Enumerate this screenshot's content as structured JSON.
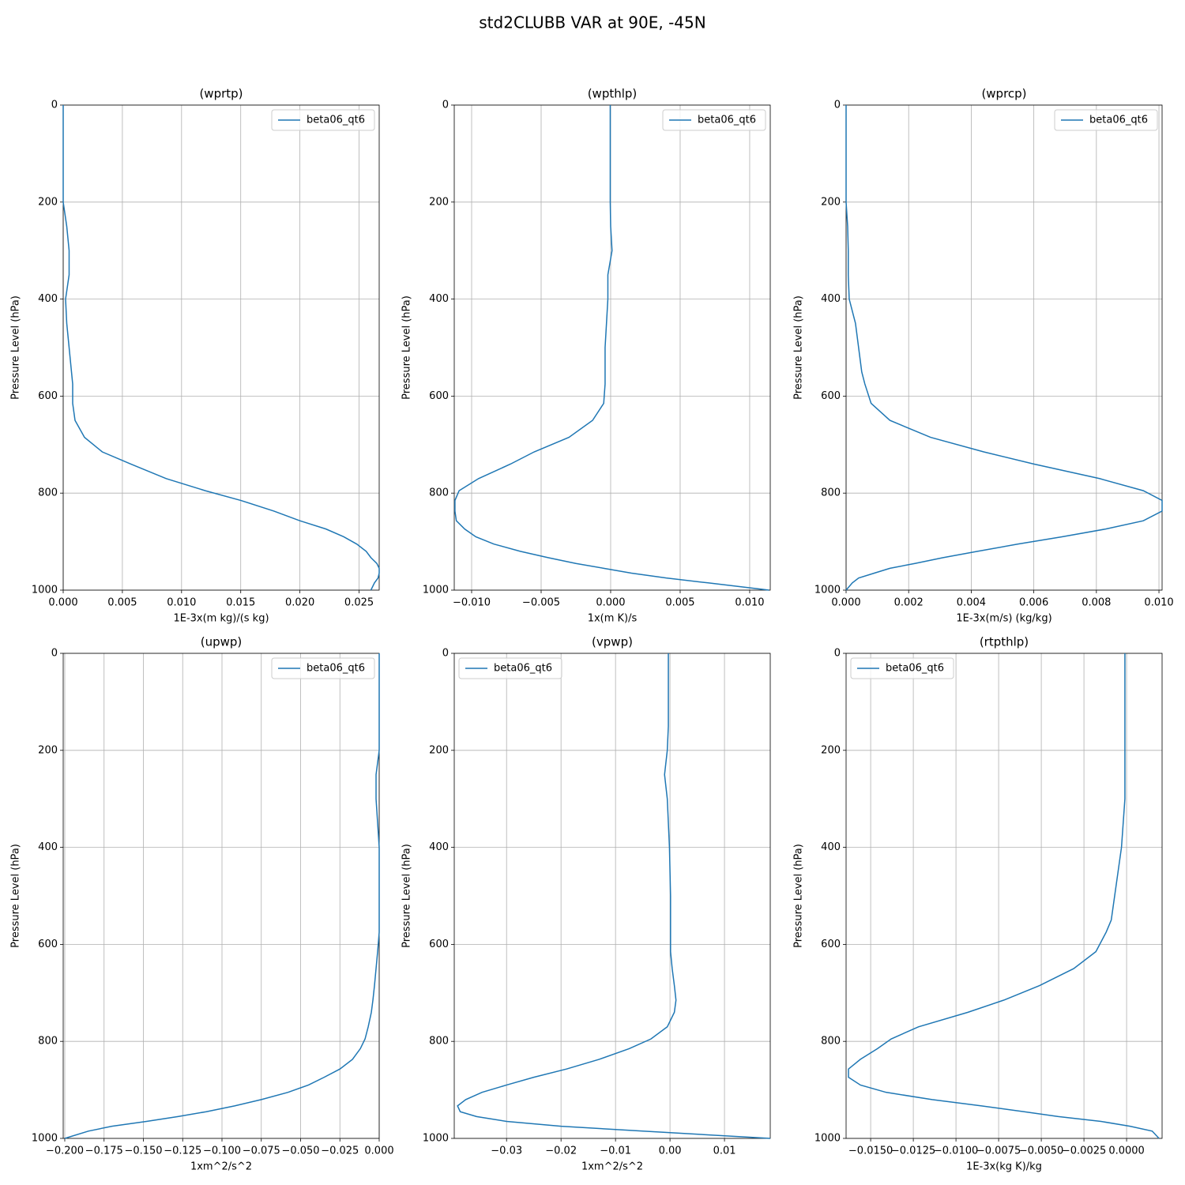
{
  "title": "std2CLUBB VAR at 90E, -45N",
  "chart_data": [
    {
      "type": "line",
      "title": "(wprtp)",
      "xlabel": "1E-3x(m kg)/(s kg)",
      "ylabel": "Pressure Level (hPa)",
      "y": [
        0,
        50,
        100,
        150,
        200,
        250,
        300,
        350,
        400,
        450,
        500,
        550,
        575,
        615,
        650,
        685,
        715,
        740,
        770,
        795,
        815,
        837,
        857,
        874,
        890,
        905,
        920,
        933,
        945,
        955,
        965,
        975,
        985,
        1000
      ],
      "series": [
        {
          "name": "beta06_qt6",
          "color": "#1f77b4",
          "values": [
            0,
            0,
            0,
            0,
            0,
            0.0003,
            0.0005,
            0.0005,
            0.0002,
            0.0003,
            0.0005,
            0.0007,
            0.0008,
            0.0008,
            0.001,
            0.0018,
            0.0033,
            0.0057,
            0.0087,
            0.012,
            0.015,
            0.0178,
            0.02,
            0.0222,
            0.0237,
            0.0248,
            0.0256,
            0.026,
            0.0265,
            0.0267,
            0.0267,
            0.0266,
            0.0263,
            0.026
          ]
        }
      ],
      "xlim": [
        0,
        0.0267
      ],
      "ylim": [
        1000,
        0
      ],
      "xticks": [
        {
          "value": 0,
          "label": "0.000"
        },
        {
          "value": 0.005,
          "label": "0.005"
        },
        {
          "value": 0.01,
          "label": "0.010"
        },
        {
          "value": 0.015,
          "label": "0.015"
        },
        {
          "value": 0.02,
          "label": "0.020"
        },
        {
          "value": 0.025,
          "label": "0.025"
        }
      ],
      "yticks": [
        0,
        200,
        400,
        600,
        800,
        1000
      ],
      "grid": true,
      "legend": "upper right"
    },
    {
      "type": "line",
      "title": "(wpthlp)",
      "xlabel": "1x(m K)/s",
      "ylabel": "Pressure Level (hPa)",
      "y": [
        0,
        50,
        100,
        150,
        200,
        250,
        300,
        350,
        400,
        450,
        500,
        550,
        575,
        615,
        650,
        685,
        715,
        740,
        770,
        795,
        815,
        837,
        857,
        874,
        890,
        905,
        920,
        933,
        945,
        955,
        965,
        975,
        985,
        1000
      ],
      "series": [
        {
          "name": "beta06_qt6",
          "color": "#1f77b4",
          "values": [
            -3e-05,
            -3e-05,
            -3e-05,
            -3e-05,
            -3e-05,
            0,
            0.0001,
            -0.0002,
            -0.0002,
            -0.0003,
            -0.0004,
            -0.0004,
            -0.0004,
            -0.0005,
            -0.0013,
            -0.003,
            -0.0055,
            -0.0072,
            -0.0095,
            -0.0109,
            -0.0112,
            -0.0112,
            -0.0111,
            -0.0105,
            -0.0097,
            -0.0084,
            -0.0065,
            -0.0045,
            -0.0025,
            -0.0005,
            0.0015,
            0.004,
            0.007,
            0.0114
          ]
        }
      ],
      "xlim": [
        -0.01125,
        0.01148
      ],
      "ylim": [
        1000,
        0
      ],
      "xticks": [
        {
          "value": -0.01,
          "label": "−0.010"
        },
        {
          "value": -0.005,
          "label": "−0.005"
        },
        {
          "value": 0,
          "label": "0.000"
        },
        {
          "value": 0.005,
          "label": "0.005"
        },
        {
          "value": 0.01,
          "label": "0.010"
        }
      ],
      "yticks": [
        0,
        200,
        400,
        600,
        800,
        1000
      ],
      "grid": true,
      "legend": "upper right"
    },
    {
      "type": "line",
      "title": "(wprcp)",
      "xlabel": "1E-3x(m/s) (kg/kg)",
      "ylabel": "Pressure Level (hPa)",
      "y": [
        0,
        50,
        100,
        150,
        200,
        250,
        300,
        350,
        400,
        450,
        500,
        550,
        575,
        615,
        650,
        685,
        715,
        740,
        770,
        795,
        815,
        837,
        857,
        874,
        890,
        905,
        920,
        933,
        945,
        955,
        965,
        975,
        985,
        1000
      ],
      "series": [
        {
          "name": "beta06_qt6",
          "color": "#1f77b4",
          "values": [
            0,
            0,
            0,
            0,
            0,
            5e-05,
            7e-05,
            7e-05,
            0.0001,
            0.0003,
            0.0004,
            0.0005,
            0.0006,
            0.0008,
            0.0014,
            0.0027,
            0.0044,
            0.006,
            0.0081,
            0.0095,
            0.0101,
            0.0101,
            0.0095,
            0.0083,
            0.0069,
            0.0055,
            0.0042,
            0.0031,
            0.0022,
            0.0014,
            0.0009,
            0.0004,
            0.0002,
            0
          ]
        }
      ],
      "xlim": [
        0,
        0.0101
      ],
      "ylim": [
        1000,
        0
      ],
      "xticks": [
        {
          "value": 0,
          "label": "0.000"
        },
        {
          "value": 0.002,
          "label": "0.002"
        },
        {
          "value": 0.004,
          "label": "0.004"
        },
        {
          "value": 0.006,
          "label": "0.006"
        },
        {
          "value": 0.008,
          "label": "0.008"
        },
        {
          "value": 0.01,
          "label": "0.010"
        }
      ],
      "yticks": [
        0,
        200,
        400,
        600,
        800,
        1000
      ],
      "grid": true,
      "legend": "upper right"
    },
    {
      "type": "line",
      "title": "(upwp)",
      "xlabel": "1xm^2/s^2",
      "ylabel": "Pressure Level (hPa)",
      "y": [
        0,
        50,
        100,
        150,
        200,
        250,
        300,
        350,
        400,
        450,
        500,
        550,
        575,
        615,
        650,
        685,
        715,
        740,
        770,
        795,
        815,
        837,
        857,
        874,
        890,
        905,
        920,
        933,
        945,
        955,
        965,
        975,
        985,
        1000
      ],
      "series": [
        {
          "name": "beta06_qt6",
          "color": "#1f77b4",
          "values": [
            0,
            0,
            0,
            0,
            0,
            -0.002,
            -0.002,
            -0.001,
            0,
            0,
            0,
            0,
            0,
            -0.001,
            -0.002,
            -0.003,
            -0.004,
            -0.005,
            -0.007,
            -0.009,
            -0.012,
            -0.017,
            -0.025,
            -0.035,
            -0.045,
            -0.058,
            -0.075,
            -0.092,
            -0.11,
            -0.128,
            -0.148,
            -0.17,
            -0.185,
            -0.2
          ]
        }
      ],
      "xlim": [
        -0.201,
        0
      ],
      "ylim": [
        1000,
        0
      ],
      "xticks": [
        {
          "value": -0.2,
          "label": "−0.200"
        },
        {
          "value": -0.175,
          "label": "−0.175"
        },
        {
          "value": -0.15,
          "label": "−0.150"
        },
        {
          "value": -0.125,
          "label": "−0.125"
        },
        {
          "value": -0.1,
          "label": "−0.100"
        },
        {
          "value": -0.075,
          "label": "−0.075"
        },
        {
          "value": -0.05,
          "label": "−0.050"
        },
        {
          "value": -0.025,
          "label": "−0.025"
        },
        {
          "value": 0,
          "label": "0.000"
        }
      ],
      "yticks": [
        0,
        200,
        400,
        600,
        800,
        1000
      ],
      "grid": true,
      "legend": "upper right"
    },
    {
      "type": "line",
      "title": "(vpwp)",
      "xlabel": "1xm^2/s^2",
      "ylabel": "Pressure Level (hPa)",
      "y": [
        0,
        50,
        100,
        150,
        200,
        250,
        300,
        350,
        400,
        450,
        500,
        550,
        575,
        615,
        650,
        685,
        715,
        740,
        770,
        795,
        815,
        837,
        857,
        874,
        890,
        905,
        920,
        933,
        945,
        955,
        965,
        975,
        985,
        1000
      ],
      "series": [
        {
          "name": "beta06_qt6",
          "color": "#1f77b4",
          "values": [
            -0.0003,
            -0.0003,
            -0.0003,
            -0.0003,
            -0.0005,
            -0.001,
            -0.0005,
            -0.0003,
            -0.0001,
            0,
            0.0001,
            0.0001,
            0.0001,
            0.0001,
            0.0004,
            0.0008,
            0.0011,
            0.0008,
            -0.0005,
            -0.0035,
            -0.0075,
            -0.013,
            -0.019,
            -0.025,
            -0.03,
            -0.0345,
            -0.0375,
            -0.039,
            -0.0385,
            -0.0355,
            -0.03,
            -0.02,
            -0.005,
            0.0184
          ]
        }
      ],
      "xlim": [
        -0.0396,
        0.0184
      ],
      "ylim": [
        1000,
        0
      ],
      "xticks": [
        {
          "value": -0.03,
          "label": "−0.03"
        },
        {
          "value": -0.02,
          "label": "−0.02"
        },
        {
          "value": -0.01,
          "label": "−0.01"
        },
        {
          "value": 0,
          "label": "0.00"
        },
        {
          "value": 0.01,
          "label": "0.01"
        }
      ],
      "yticks": [
        0,
        200,
        400,
        600,
        800,
        1000
      ],
      "grid": true,
      "legend": "upper left"
    },
    {
      "type": "line",
      "title": "(rtpthlp)",
      "xlabel": "1E-3x(kg K)/kg",
      "ylabel": "Pressure Level (hPa)",
      "y": [
        0,
        50,
        100,
        150,
        200,
        250,
        300,
        350,
        400,
        450,
        500,
        550,
        575,
        615,
        650,
        685,
        715,
        740,
        770,
        795,
        815,
        837,
        857,
        874,
        890,
        905,
        920,
        933,
        945,
        955,
        965,
        975,
        985,
        1000
      ],
      "series": [
        {
          "name": "beta06_qt6",
          "color": "#1f77b4",
          "values": [
            -0.0001,
            -0.0001,
            -0.0001,
            -0.0001,
            -0.0001,
            -0.0001,
            -0.0001,
            -0.0002,
            -0.0003,
            -0.0005,
            -0.0007,
            -0.0009,
            -0.0012,
            -0.0018,
            -0.0031,
            -0.0051,
            -0.0072,
            -0.0093,
            -0.0122,
            -0.0138,
            -0.0146,
            -0.0156,
            -0.0163,
            -0.0163,
            -0.0156,
            -0.0141,
            -0.0114,
            -0.0085,
            -0.006,
            -0.004,
            -0.0015,
            0.0002,
            0.0015,
            0.0019
          ]
        }
      ],
      "xlim": [
        -0.01644,
        0.00208
      ],
      "ylim": [
        1000,
        0
      ],
      "xticks": [
        {
          "value": -0.015,
          "label": "−0.0150"
        },
        {
          "value": -0.0125,
          "label": "−0.0125"
        },
        {
          "value": -0.01,
          "label": "−0.0100"
        },
        {
          "value": -0.0075,
          "label": "−0.0075"
        },
        {
          "value": -0.005,
          "label": "−0.0050"
        },
        {
          "value": -0.0025,
          "label": "−0.0025"
        },
        {
          "value": 0,
          "label": "0.0000"
        }
      ],
      "yticks": [
        0,
        200,
        400,
        600,
        800,
        1000
      ],
      "grid": true,
      "legend": "upper left"
    }
  ]
}
